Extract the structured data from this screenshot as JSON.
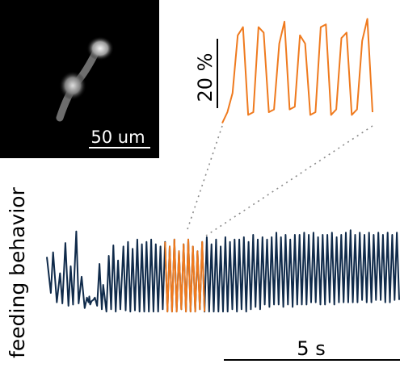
{
  "figure": {
    "micrograph_scalebar_label": "50 um",
    "zoom_scalebar_label": "20 %",
    "time_scalebar_label": "5 s"
  },
  "chart_data": [
    {
      "type": "line",
      "title": "",
      "ylabel": "feeding behavior",
      "xlabel": "",
      "x_unit": "s",
      "xlim": [
        0,
        15.2
      ],
      "grid": false,
      "scalebar": "5 s",
      "series": [
        {
          "color": "#0f2a4a",
          "x": [
            0.0,
            0.17,
            0.27,
            0.43,
            0.57,
            0.67,
            0.8,
            0.93,
            1.03,
            1.13,
            1.27,
            1.37,
            1.5,
            1.63,
            1.73,
            1.8,
            1.83,
            1.87,
            1.93,
            2.0,
            2.07,
            2.17,
            2.27,
            2.37,
            2.43,
            2.57,
            2.67,
            2.77,
            2.87,
            2.97,
            3.07,
            3.17,
            3.3,
            3.4,
            3.5,
            3.6,
            3.7,
            3.8,
            3.9,
            4.0,
            4.1,
            4.2,
            4.3,
            4.4,
            4.5,
            4.6,
            4.7,
            4.8,
            4.9,
            5.0,
            5.1,
            5.2,
            5.3,
            5.4,
            5.5,
            5.6,
            5.7,
            5.8,
            5.9,
            6.0,
            6.1,
            6.2,
            6.3,
            6.4,
            6.5,
            6.6,
            6.7,
            6.8,
            6.9,
            7.0,
            7.1,
            7.2,
            7.3,
            7.4,
            7.5,
            7.6,
            7.7,
            7.8,
            7.9,
            8.0,
            8.1,
            8.2,
            8.3,
            8.4,
            8.5,
            8.6,
            8.7,
            8.8,
            8.9,
            9.0,
            9.1,
            9.2,
            9.3,
            9.4,
            9.5,
            9.6,
            9.7,
            9.8,
            9.9,
            10.0,
            10.1,
            10.2,
            10.3,
            10.4,
            10.5,
            10.6,
            10.7,
            10.8,
            10.9,
            11.0,
            11.1,
            11.2,
            11.3,
            11.4,
            11.5,
            11.6,
            11.7,
            11.8,
            11.9,
            12.0,
            12.1,
            12.2,
            12.3,
            12.4,
            12.5,
            12.6,
            12.7,
            12.8,
            12.9,
            13.0,
            13.1,
            13.2,
            13.3,
            13.4,
            13.5,
            13.6,
            13.7,
            13.8,
            13.9,
            14.0,
            14.1,
            14.2,
            14.3,
            14.4,
            14.5,
            14.6,
            14.7,
            14.8,
            14.9,
            15.0,
            15.1,
            15.2
          ],
          "y": [
            65,
            34,
            69,
            26,
            51,
            25,
            77,
            23,
            57,
            24,
            87,
            25,
            48,
            21,
            30,
            26,
            31,
            24,
            27,
            28,
            30,
            23,
            59,
            20,
            41,
            18,
            66,
            20,
            75,
            18,
            62,
            20,
            74,
            19,
            78,
            18,
            72,
            19,
            80,
            18,
            76,
            18,
            78,
            18,
            80,
            18,
            76,
            18,
            74,
            20,
            78,
            18,
            74,
            18,
            80,
            18,
            70,
            20,
            76,
            18,
            80,
            18,
            74,
            18,
            70,
            20,
            78,
            18,
            82,
            18,
            76,
            18,
            80,
            18,
            74,
            18,
            82,
            18,
            78,
            20,
            80,
            18,
            80,
            20,
            82,
            18,
            78,
            20,
            84,
            22,
            80,
            20,
            82,
            24,
            80,
            22,
            82,
            24,
            86,
            24,
            82,
            22,
            84,
            24,
            80,
            22,
            84,
            24,
            84,
            24,
            86,
            24,
            84,
            26,
            86,
            26,
            82,
            24,
            84,
            24,
            84,
            26,
            86,
            24,
            82,
            26,
            84,
            26,
            86,
            26,
            88,
            26,
            84,
            26,
            86,
            28,
            84,
            26,
            86,
            26,
            84,
            28,
            86,
            28,
            84,
            26,
            86,
            26,
            84,
            28,
            86,
            28
          ]
        },
        {
          "color": "#ef7a1e",
          "x_range": [
            5.1,
            6.8
          ],
          "zoom_inset_y": [
            2,
            10,
            24,
            66,
            72,
            8,
            10,
            72,
            68,
            10,
            12,
            60,
            76,
            12,
            14,
            66,
            60,
            8,
            10,
            72,
            74,
            8,
            12,
            64,
            68,
            8,
            12,
            62,
            78,
            10
          ]
        }
      ]
    }
  ]
}
